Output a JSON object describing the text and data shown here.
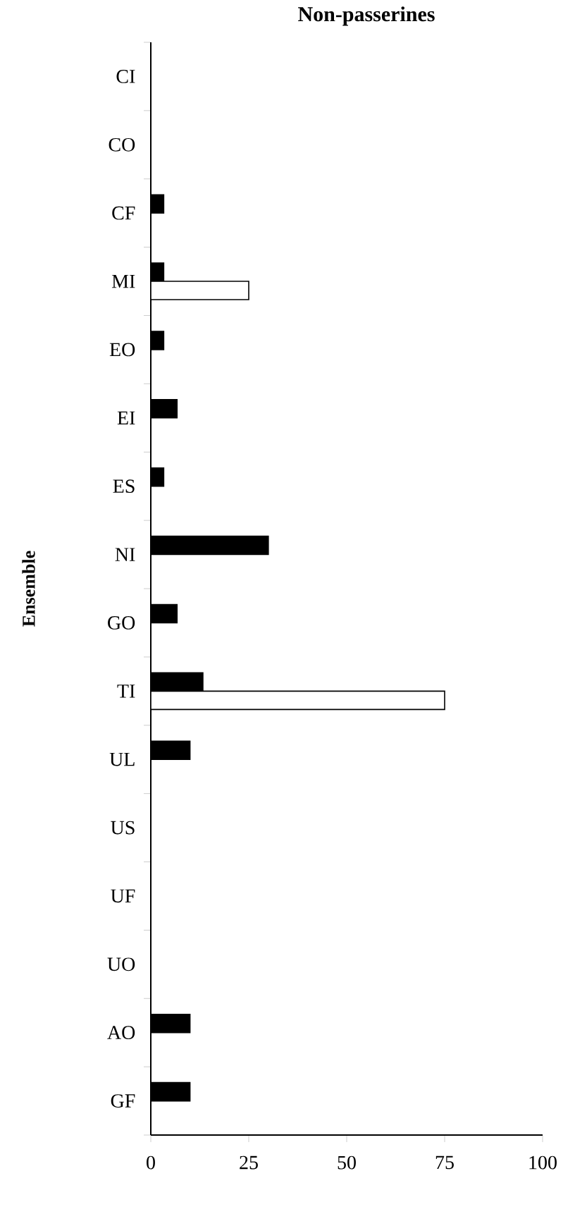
{
  "chart_data": {
    "type": "bar",
    "orientation": "horizontal",
    "title": "Non-passerines",
    "ylabel": "Ensemble",
    "categories": [
      "CI",
      "CO",
      "CF",
      "MI",
      "EO",
      "EI",
      "ES",
      "NI",
      "GO",
      "TI",
      "UL",
      "US",
      "UF",
      "UO",
      "AO",
      "GF"
    ],
    "series": [
      {
        "color": "#000000",
        "values": [
          0,
          0,
          3.3,
          3.3,
          3.3,
          6.7,
          3.3,
          30,
          6.7,
          13.3,
          10,
          0,
          0,
          0,
          10,
          10
        ]
      },
      {
        "color": "#ffffff",
        "values": [
          0,
          0,
          0,
          25,
          0,
          0,
          0,
          0,
          0,
          75,
          0,
          0,
          0,
          0,
          0,
          0
        ]
      }
    ],
    "xlim": [
      0,
      100
    ],
    "xticks": [
      0,
      25,
      50,
      75,
      100
    ],
    "grid": false,
    "legend": false
  }
}
